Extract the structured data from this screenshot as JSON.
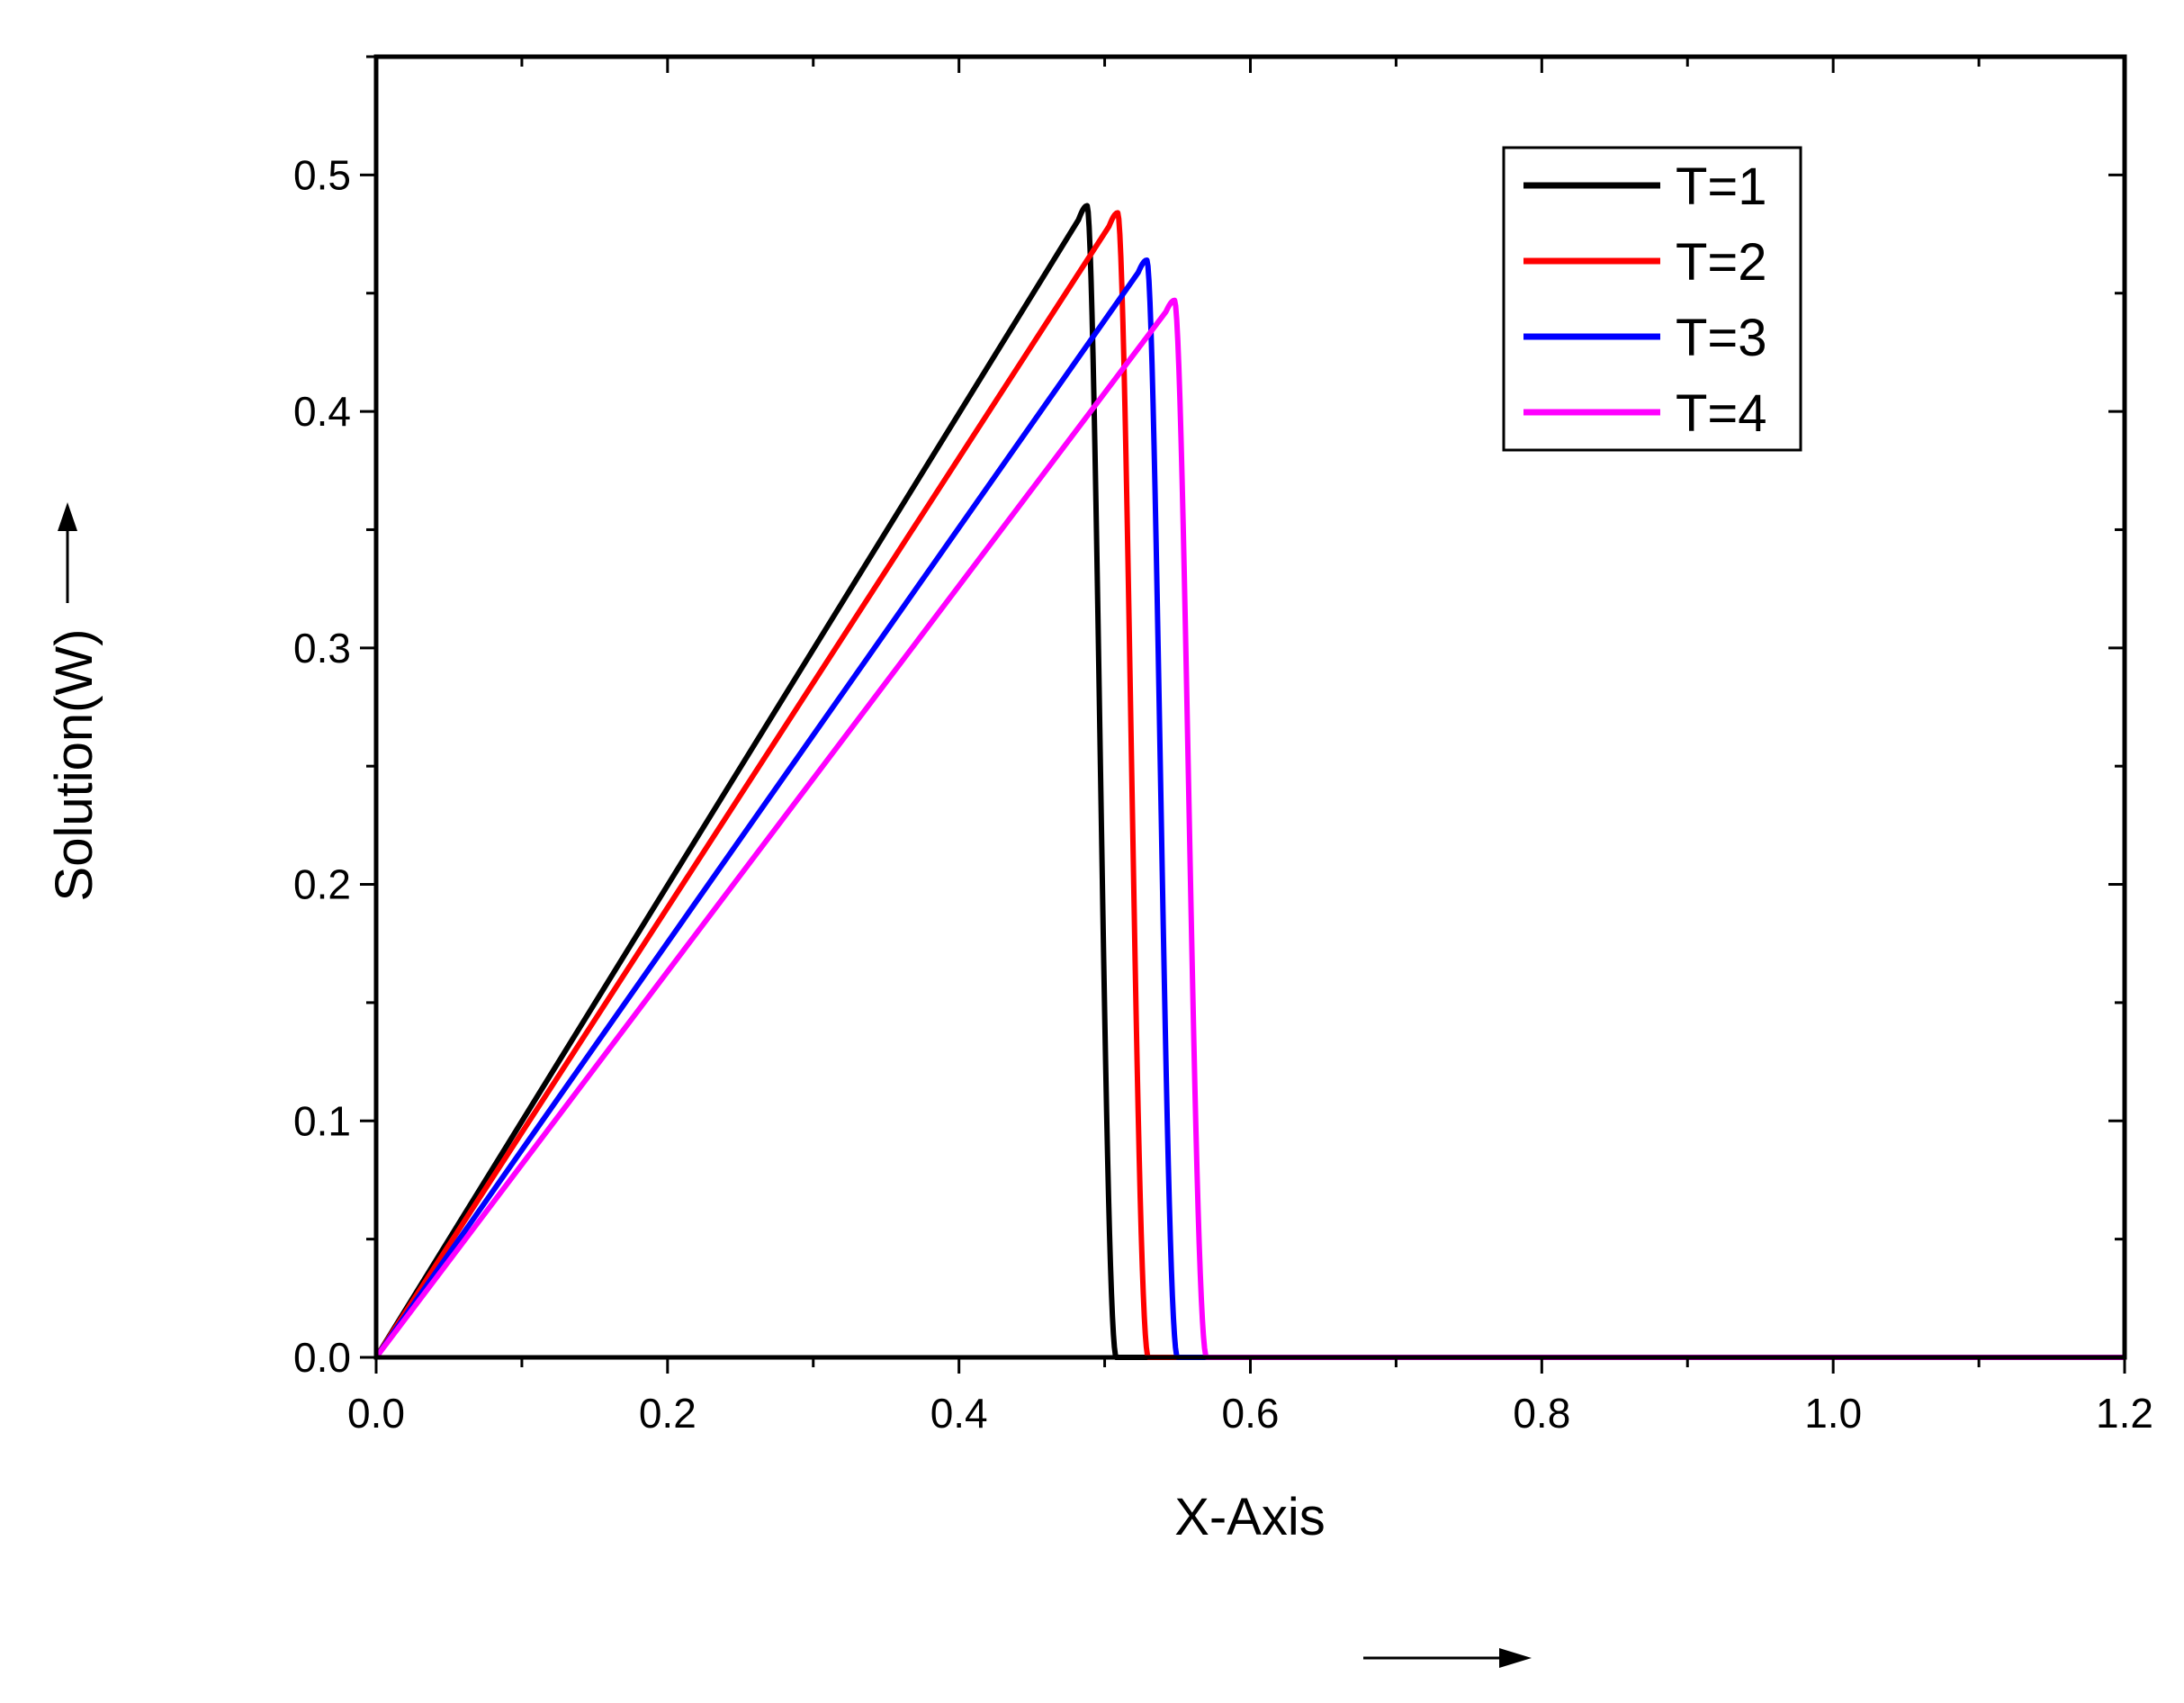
{
  "chart_data": {
    "type": "line",
    "xlabel": "X-Axis",
    "ylabel": "Solution(W)",
    "xlim": [
      0,
      1.2
    ],
    "ylim": [
      0,
      0.55
    ],
    "xticks": [
      "0.0",
      "0.2",
      "0.4",
      "0.6",
      "0.8",
      "1.0",
      "1.2"
    ],
    "yticks": [
      "0.0",
      "0.1",
      "0.2",
      "0.3",
      "0.4",
      "0.5"
    ],
    "grid": false,
    "legend_position": "top-right",
    "series": [
      {
        "name": "T=1",
        "color": "#000000",
        "peak_x": 0.488,
        "peak_y": 0.487,
        "zero_x": 0.508
      },
      {
        "name": "T=2",
        "color": "#ff0000",
        "peak_x": 0.509,
        "peak_y": 0.484,
        "zero_x": 0.53
      },
      {
        "name": "T=3",
        "color": "#0000ff",
        "peak_x": 0.529,
        "peak_y": 0.464,
        "zero_x": 0.55
      },
      {
        "name": "T=4",
        "color": "#ff00ff",
        "peak_x": 0.548,
        "peak_y": 0.447,
        "zero_x": 0.57
      }
    ]
  }
}
